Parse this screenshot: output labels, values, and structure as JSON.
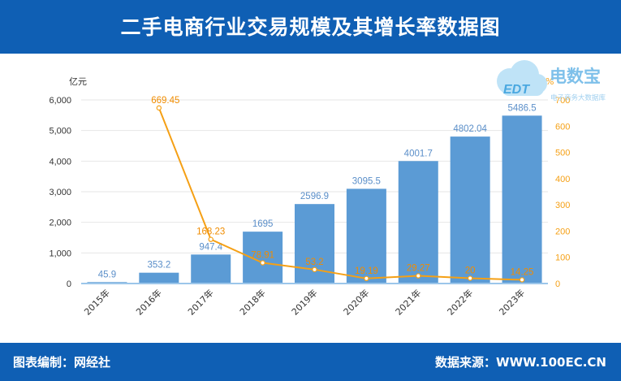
{
  "title": "二手电商行业交易规模及其增长率数据图",
  "footer": {
    "left": "图表编制：网经社",
    "right": "数据来源：WWW.100EC.CN"
  },
  "logo": {
    "main": "电数宝",
    "sub": "电子商务大数据库",
    "badge": "EDT"
  },
  "colors": {
    "header": "#0f5fb4",
    "bar": "#5b9bd5",
    "line": "#f5a015",
    "bar_label": "#5b8fc9",
    "line_label": "#f08c00"
  },
  "chart_data": {
    "type": "bar",
    "categories": [
      "2015年",
      "2016年",
      "2017年",
      "2018年",
      "2019年",
      "2020年",
      "2021年",
      "2022年",
      "2023年"
    ],
    "series": [
      {
        "type": "bar",
        "axis": "left",
        "values": [
          45.9,
          353.2,
          947.4,
          1695,
          2596.9,
          3095.5,
          4001.7,
          4802.04,
          5486.5
        ]
      },
      {
        "type": "line",
        "axis": "right",
        "values": [
          null,
          669.45,
          168.23,
          78.91,
          53.2,
          19.19,
          29.27,
          20,
          14.25
        ]
      }
    ],
    "y_left": {
      "unit": "亿元",
      "ticks": [
        "0",
        "1,000",
        "2,000",
        "3,000",
        "4,000",
        "5,000",
        "6,000"
      ],
      "ylim": [
        0,
        6000
      ]
    },
    "y_right": {
      "unit": "%",
      "ticks": [
        "0",
        "100",
        "200",
        "300",
        "400",
        "500",
        "600",
        "700"
      ],
      "ylim": [
        0,
        700
      ]
    },
    "grid": true
  }
}
